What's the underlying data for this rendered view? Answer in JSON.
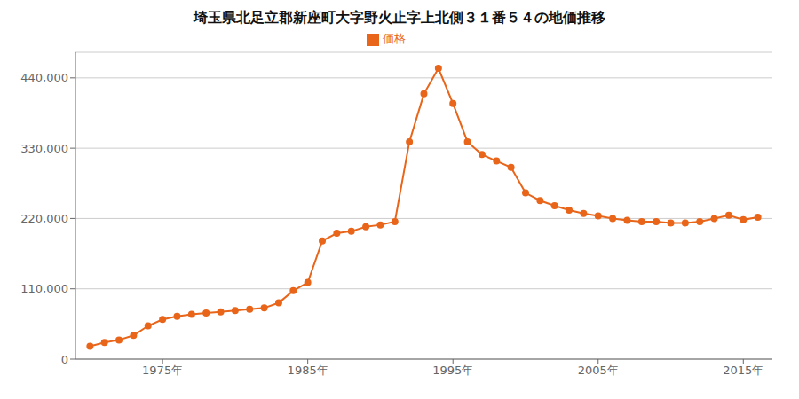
{
  "chart_data": {
    "type": "line",
    "title": "埼玉県北足立郡新座町大字野火止字上北側３１番５４の地価推移",
    "x": [
      1970,
      1971,
      1972,
      1973,
      1974,
      1975,
      1976,
      1977,
      1978,
      1979,
      1980,
      1981,
      1982,
      1983,
      1984,
      1985,
      1986,
      1987,
      1988,
      1989,
      1990,
      1991,
      1992,
      1993,
      1994,
      1995,
      1996,
      1997,
      1998,
      1999,
      2000,
      2001,
      2002,
      2003,
      2004,
      2005,
      2006,
      2007,
      2008,
      2009,
      2010,
      2011,
      2012,
      2013,
      2014,
      2015,
      2016
    ],
    "series": [
      {
        "name": "価格",
        "color": "#e8651a",
        "marker": "circle",
        "values": [
          20000,
          26000,
          30000,
          37000,
          52000,
          62000,
          67000,
          70000,
          72000,
          74000,
          76000,
          78000,
          80000,
          88000,
          107000,
          120000,
          185000,
          197000,
          200000,
          207000,
          210000,
          215000,
          340000,
          415000,
          455000,
          400000,
          340000,
          320000,
          310000,
          300000,
          260000,
          248000,
          240000,
          233000,
          228000,
          224000,
          220000,
          217000,
          215000,
          215000,
          213000,
          213000,
          215000,
          220000,
          225000,
          218000,
          222000
        ]
      }
    ],
    "xlim": [
      1969,
      2017
    ],
    "xticks": [
      {
        "value": 1975,
        "label": "1975年"
      },
      {
        "value": 1985,
        "label": "1985年"
      },
      {
        "value": 1995,
        "label": "1995年"
      },
      {
        "value": 2005,
        "label": "2005年"
      },
      {
        "value": 2015,
        "label": "2015年"
      }
    ],
    "ylim": [
      0,
      480000
    ],
    "yticks": [
      0,
      {
        "value": 110000,
        "label": "110,000"
      },
      {
        "value": 220000,
        "label": "220,000"
      },
      {
        "value": 330000,
        "label": "330,000"
      },
      {
        "value": 440000,
        "label": "440,000"
      }
    ],
    "grid": "y",
    "legend": "top"
  }
}
